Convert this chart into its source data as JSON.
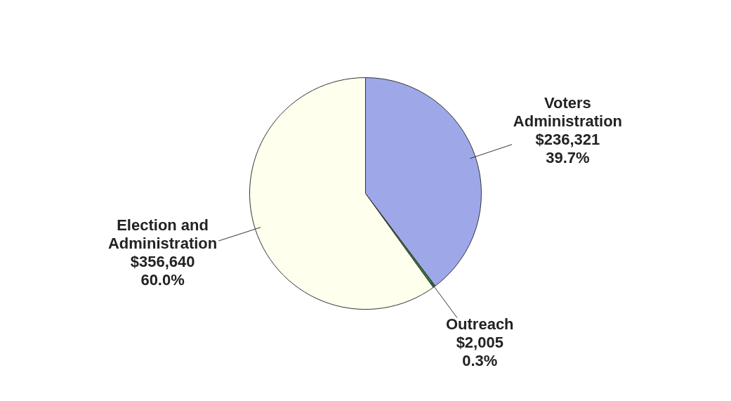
{
  "chart_data": {
    "type": "pie",
    "categories": [
      "Voters\nAdministration",
      "Outreach",
      "Election and\nAdministration"
    ],
    "values": [
      236321,
      2005,
      356640
    ],
    "colors": [
      "#9ea8e8",
      "#2f7d32",
      "#ffffee"
    ],
    "value_labels": [
      "$236,321\n39.7%",
      "$2,005\n0.3%",
      "$356,640\n60.0%"
    ]
  }
}
